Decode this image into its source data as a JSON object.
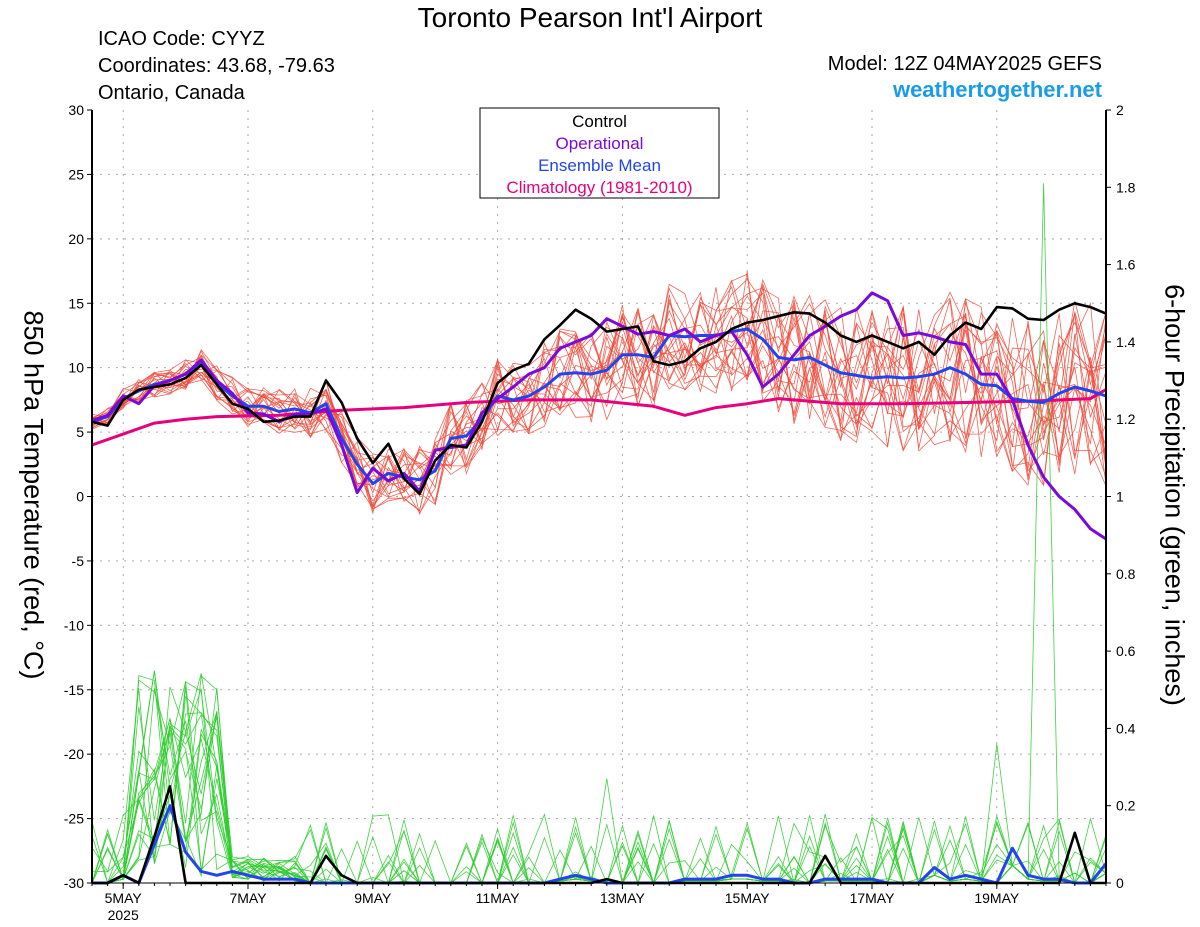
{
  "header": {
    "title": "Toronto Pearson Int'l Airport",
    "icao": "ICAO Code: CYYZ",
    "coords": "Coordinates: 43.68, -79.63",
    "region": "Ontario, Canada",
    "model": "Model: 12Z 04MAY2025 GEFS",
    "site": "weathertogether.net"
  },
  "colors": {
    "control": "#000000",
    "operational": "#7b0ad8",
    "ensemble_mean": "#2244ee",
    "climatology": "#e6007e",
    "members_temp": "#f04a3a",
    "members_precip": "#2ecc2e"
  },
  "chart_data": {
    "type": "line",
    "title": "Toronto Pearson Int'l Airport",
    "ylabel": "850 hPa Temperature (red, °C)",
    "y2label": "6-hour Precipitation (green, inches)",
    "ylim": [
      -30,
      30
    ],
    "y2lim": [
      0,
      2
    ],
    "y_ticks": [
      "30",
      "25",
      "20",
      "15",
      "10",
      "5",
      "0",
      "-5",
      "-10",
      "-15",
      "-20",
      "-25",
      "-30"
    ],
    "y2_ticks": [
      "2",
      "1.8",
      "1.6",
      "1.4",
      "1.2",
      "1",
      "0.8",
      "0.6",
      "0.4",
      "0.2",
      "0"
    ],
    "x_ticks": [
      {
        "day": 0.5,
        "label": "5MAY"
      },
      {
        "day": 2.5,
        "label": "7MAY"
      },
      {
        "day": 4.5,
        "label": "9MAY"
      },
      {
        "day": 6.5,
        "label": "11MAY"
      },
      {
        "day": 8.5,
        "label": "13MAY"
      },
      {
        "day": 10.5,
        "label": "15MAY"
      },
      {
        "day": 12.5,
        "label": "17MAY"
      },
      {
        "day": 14.5,
        "label": "19MAY"
      }
    ],
    "x_sublabel": "2025",
    "xlim": [
      0,
      16.25
    ],
    "grid": true,
    "legend_position": "top-center",
    "legend": [
      "Control",
      "Operational",
      "Ensemble Mean",
      "Climatology (1981-2010)"
    ],
    "series": [
      {
        "name": "Control",
        "x": [
          0,
          0.25,
          0.5,
          0.75,
          1,
          1.25,
          1.5,
          1.75,
          2,
          2.25,
          2.5,
          2.75,
          3,
          3.25,
          3.5,
          3.75,
          4,
          4.25,
          4.5,
          4.75,
          5,
          5.25,
          5.5,
          5.75,
          6,
          6.25,
          6.5,
          6.75,
          7,
          7.25,
          7.5,
          7.75,
          8,
          8.25,
          8.5,
          8.75,
          9,
          9.25,
          9.5,
          9.75,
          10,
          10.25,
          10.5,
          10.75,
          11,
          11.25,
          11.5,
          11.75,
          12,
          12.25,
          12.5,
          12.75,
          13,
          13.25,
          13.5,
          13.75,
          14,
          14.25,
          14.5,
          14.75,
          15,
          15.25,
          15.5,
          15.75,
          16,
          16.25
        ],
        "values": [
          5.8,
          5.5,
          7.5,
          8.3,
          8.5,
          8.7,
          9.2,
          10.2,
          8.7,
          7.2,
          6.8,
          5.8,
          5.9,
          6.2,
          6.2,
          9.0,
          7.3,
          4.5,
          2.6,
          4.1,
          1.4,
          0.2,
          2.8,
          4.0,
          3.8,
          5.8,
          8.8,
          9.8,
          10.3,
          12.2,
          13.3,
          14.5,
          13.8,
          12.8,
          13.0,
          13.2,
          10.5,
          10.2,
          10.5,
          11.5,
          12.0,
          13.0,
          13.5,
          13.7,
          14.0,
          14.3,
          14.2,
          13.5,
          12.5,
          12.0,
          12.5,
          12.0,
          11.5,
          12.0,
          11.0,
          12.5,
          13.5,
          13.0,
          14.7,
          14.6,
          13.8,
          13.7,
          14.5,
          15.0,
          14.7,
          14.2
        ]
      },
      {
        "name": "Operational",
        "x": [
          0,
          0.25,
          0.5,
          0.75,
          1,
          1.25,
          1.5,
          1.75,
          2,
          2.25,
          2.5,
          2.75,
          3,
          3.25,
          3.5,
          3.75,
          4,
          4.25,
          4.5,
          4.75,
          5,
          5.25,
          5.5,
          5.75,
          6,
          6.25,
          6.5,
          6.75,
          7,
          7.25,
          7.5,
          7.75,
          8,
          8.25,
          8.5,
          8.75,
          9,
          9.25,
          9.5,
          9.75,
          10,
          10.25,
          10.5,
          10.75,
          11,
          11.25,
          11.5,
          11.75,
          12,
          12.25,
          12.5,
          12.75,
          13,
          13.25,
          13.5,
          13.75,
          14,
          14.25,
          14.5,
          14.75,
          15,
          15.25,
          15.5,
          15.75,
          16,
          16.25
        ],
        "values": [
          5.9,
          6.3,
          7.8,
          7.2,
          8.6,
          9.0,
          9.5,
          10.6,
          9.0,
          8.0,
          6.5,
          6.4,
          5.8,
          6.4,
          6.4,
          6.8,
          4.0,
          0.3,
          2.2,
          1.2,
          1.8,
          0.4,
          3.6,
          3.8,
          4.0,
          6.5,
          7.6,
          8.5,
          9.5,
          10.0,
          11.5,
          12.0,
          12.5,
          13.8,
          13.2,
          12.6,
          12.8,
          12.5,
          13.0,
          12.0,
          12.5,
          12.8,
          11.0,
          8.5,
          9.5,
          11.0,
          12.5,
          13.2,
          14.0,
          14.5,
          15.8,
          15.2,
          12.5,
          12.7,
          12.4,
          12.0,
          11.8,
          9.5,
          9.5,
          7.5,
          4.0,
          1.5,
          0.0,
          -1.0,
          -2.5,
          -3.3
        ]
      },
      {
        "name": "Ensemble Mean",
        "x": [
          0,
          0.25,
          0.5,
          0.75,
          1,
          1.25,
          1.5,
          1.75,
          2,
          2.25,
          2.5,
          2.75,
          3,
          3.25,
          3.5,
          3.75,
          4,
          4.25,
          4.5,
          4.75,
          5,
          5.25,
          5.5,
          5.75,
          6,
          6.25,
          6.5,
          6.75,
          7,
          7.25,
          7.5,
          7.75,
          8,
          8.25,
          8.5,
          8.75,
          9,
          9.25,
          9.5,
          9.75,
          10,
          10.25,
          10.5,
          10.75,
          11,
          11.25,
          11.5,
          11.75,
          12,
          12.25,
          12.5,
          12.75,
          13,
          13.25,
          13.5,
          13.75,
          14,
          14.25,
          14.5,
          14.75,
          15,
          15.25,
          15.5,
          15.75,
          16,
          16.25
        ],
        "values": [
          5.8,
          6.2,
          7.6,
          8.2,
          8.7,
          9.0,
          9.5,
          10.3,
          8.8,
          7.8,
          7.0,
          7.0,
          6.6,
          6.8,
          6.5,
          7.2,
          4.5,
          2.5,
          1.0,
          1.8,
          1.5,
          1.3,
          2.0,
          4.5,
          4.7,
          6.0,
          7.8,
          7.5,
          7.8,
          8.5,
          9.5,
          9.6,
          9.5,
          9.8,
          11.0,
          11.0,
          10.8,
          12.5,
          12.4,
          12.5,
          12.5,
          12.8,
          13.0,
          12.2,
          10.8,
          10.6,
          10.8,
          10.2,
          9.6,
          9.4,
          9.2,
          9.3,
          9.2,
          9.3,
          9.5,
          10.0,
          9.5,
          8.7,
          8.6,
          7.6,
          7.4,
          7.3,
          8.0,
          8.5,
          8.2,
          7.8
        ]
      },
      {
        "name": "Climatology (1981-2010)",
        "x": [
          0,
          1,
          1.5,
          2,
          3,
          4,
          5,
          6,
          7,
          8,
          9,
          9.5,
          10,
          10.5,
          11,
          12,
          13,
          14,
          15,
          16,
          16.25
        ],
        "values": [
          4.0,
          5.7,
          6.0,
          6.2,
          6.3,
          6.7,
          6.9,
          7.3,
          7.5,
          7.5,
          7.0,
          6.3,
          6.9,
          7.2,
          7.6,
          7.2,
          7.2,
          7.3,
          7.4,
          7.6,
          8.3
        ]
      }
    ],
    "precip_series": [
      {
        "name": "Control",
        "values": [
          0,
          0,
          0.02,
          0,
          0.12,
          0.25,
          0,
          0,
          0,
          0,
          0,
          0,
          0,
          0,
          0,
          0.07,
          0.02,
          0,
          0,
          0,
          0,
          0,
          0,
          0,
          0,
          0,
          0,
          0,
          0,
          0,
          0,
          0,
          0,
          0.01,
          0,
          0,
          0,
          0,
          0,
          0,
          0,
          0,
          0,
          0,
          0,
          0,
          0,
          0.07,
          0,
          0,
          0,
          0,
          0,
          0,
          0,
          0,
          0,
          0,
          0,
          0,
          0,
          0,
          0,
          0.13,
          0,
          0
        ]
      },
      {
        "name": "Ensemble Mean",
        "values": [
          0,
          0,
          0.02,
          0,
          0.1,
          0.2,
          0.08,
          0.03,
          0.02,
          0.03,
          0.02,
          0.01,
          0.01,
          0.01,
          0,
          0,
          0,
          0,
          0,
          0,
          0,
          0,
          0,
          0,
          0,
          0,
          0,
          0,
          0,
          0,
          0.01,
          0.02,
          0.01,
          0,
          0,
          0,
          0,
          0,
          0.01,
          0.01,
          0.01,
          0.02,
          0.02,
          0.01,
          0.01,
          0,
          0,
          0.01,
          0.01,
          0.01,
          0.01,
          0,
          0,
          0,
          0.04,
          0.01,
          0.02,
          0.01,
          0,
          0.09,
          0.02,
          0.01,
          0.01,
          0,
          0,
          0.05
        ]
      }
    ]
  }
}
